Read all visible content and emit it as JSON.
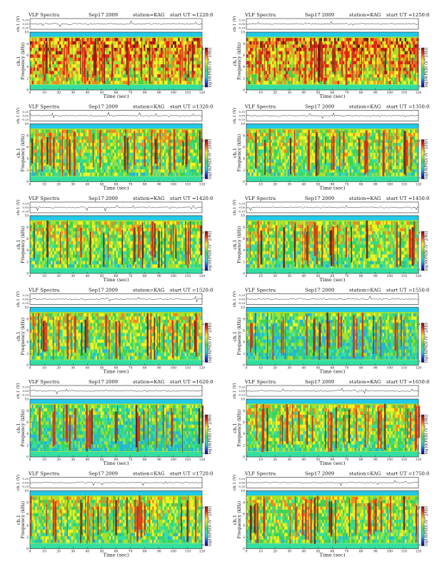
{
  "page": {
    "header": {
      "title": "VLF Spectra",
      "date": "Sep17 2009",
      "station": "station=KAG",
      "start_prefix": "start UT ="
    },
    "wave_axis": {
      "label": "ch.1 (V)",
      "ticks": [
        "0.20",
        "0.00",
        "-0.20"
      ]
    },
    "spec_axis": {
      "ylabel_1": "ch.1",
      "ylabel_2": "Frequency (kHz)",
      "yticks": [
        "0",
        "2",
        "4",
        "6",
        "8",
        "10"
      ],
      "xlabel": "Time (sec)",
      "xticks": [
        "0",
        "10",
        "20",
        "30",
        "40",
        "50",
        "60",
        "70",
        "80",
        "90",
        "100",
        "110",
        "120"
      ]
    },
    "colorbar": {
      "label": "log10(PSD) (V^2/Hz)",
      "ticks": [
        "-4",
        "-8"
      ]
    }
  },
  "colors": {
    "scale": [
      "#0b0f6b",
      "#1d3fd0",
      "#22b7d8",
      "#33dfa0",
      "#3bd455",
      "#a6e030",
      "#f2f224",
      "#f08a22",
      "#e22214",
      "#6a1a10"
    ],
    "background": "#ffffff",
    "band_top": "#22c9e6"
  },
  "chart_data": [
    {
      "type": "heatmap",
      "title": "VLF Spectra",
      "date": "Sep17 2009",
      "station": "station=KAG",
      "start_ut": "1220:0",
      "time_sec": [
        0,
        120
      ],
      "freq_khz": [
        0,
        10
      ],
      "intensity": "high",
      "pattern": "dense red-yellow vertical streaks 1-9 kHz"
    },
    {
      "type": "heatmap",
      "title": "VLF Spectra",
      "date": "Sep17 2009",
      "station": "station=KAG",
      "start_ut": "1250:0",
      "time_sec": [
        0,
        120
      ],
      "freq_khz": [
        0,
        10
      ],
      "intensity": "high",
      "pattern": "dense red-yellow vertical streaks 1-9 kHz"
    },
    {
      "type": "heatmap",
      "title": "VLF Spectra",
      "date": "Sep17 2009",
      "station": "station=KAG",
      "start_ut": "1320:0",
      "time_sec": [
        0,
        120
      ],
      "freq_khz": [
        0,
        10
      ],
      "intensity": "medium",
      "pattern": "yellow-green background with red streaks"
    },
    {
      "type": "heatmap",
      "title": "VLF Spectra",
      "date": "Sep17 2009",
      "station": "station=KAG",
      "start_ut": "1350:0",
      "time_sec": [
        0,
        120
      ],
      "freq_khz": [
        0,
        10
      ],
      "intensity": "medium",
      "pattern": "yellow-green background with red streaks"
    },
    {
      "type": "heatmap",
      "title": "VLF Spectra",
      "date": "Sep17 2009",
      "station": "station=KAG",
      "start_ut": "1420:0",
      "time_sec": [
        0,
        120
      ],
      "freq_khz": [
        0,
        10
      ],
      "intensity": "medium",
      "pattern": "green-yellow background with thin red streaks"
    },
    {
      "type": "heatmap",
      "title": "VLF Spectra",
      "date": "Sep17 2009",
      "station": "station=KAG",
      "start_ut": "1450:0",
      "time_sec": [
        0,
        120
      ],
      "freq_khz": [
        0,
        10
      ],
      "intensity": "medium",
      "pattern": "green-yellow background with thin red streaks"
    },
    {
      "type": "heatmap",
      "title": "VLF Spectra",
      "date": "Sep17 2009",
      "station": "station=KAG",
      "start_ut": "1520:0",
      "time_sec": [
        0,
        120
      ],
      "freq_khz": [
        0,
        10
      ],
      "intensity": "medium",
      "pattern": "green background with yellow-red vertical streaks"
    },
    {
      "type": "heatmap",
      "title": "VLF Spectra",
      "date": "Sep17 2009",
      "station": "station=KAG",
      "start_ut": "1550:0",
      "time_sec": [
        0,
        120
      ],
      "freq_khz": [
        0,
        10
      ],
      "intensity": "low",
      "pattern": "green-cyan background with red streaks"
    },
    {
      "type": "heatmap",
      "title": "VLF Spectra",
      "date": "Sep17 2009",
      "station": "station=KAG",
      "start_ut": "1620:0",
      "time_sec": [
        0,
        120
      ],
      "freq_khz": [
        0,
        10
      ],
      "intensity": "low",
      "pattern": "green-cyan background with red-brown streaks"
    },
    {
      "type": "heatmap",
      "title": "VLF Spectra",
      "date": "Sep17 2009",
      "station": "station=KAG",
      "start_ut": "1650:0",
      "time_sec": [
        0,
        120
      ],
      "freq_khz": [
        0,
        10
      ],
      "intensity": "medium",
      "pattern": "green background with red streaks in 3-8 kHz"
    },
    {
      "type": "heatmap",
      "title": "VLF Spectra",
      "date": "Sep17 2009",
      "station": "station=KAG",
      "start_ut": "1720:0",
      "time_sec": [
        0,
        120
      ],
      "freq_khz": [
        0,
        10
      ],
      "intensity": "medium",
      "pattern": "green background with red streaks"
    },
    {
      "type": "heatmap",
      "title": "VLF Spectra",
      "date": "Sep17 2009",
      "station": "station=KAG",
      "start_ut": "1750:0",
      "time_sec": [
        0,
        120
      ],
      "freq_khz": [
        0,
        10
      ],
      "intensity": "medium",
      "pattern": "green background with red streaks"
    }
  ]
}
